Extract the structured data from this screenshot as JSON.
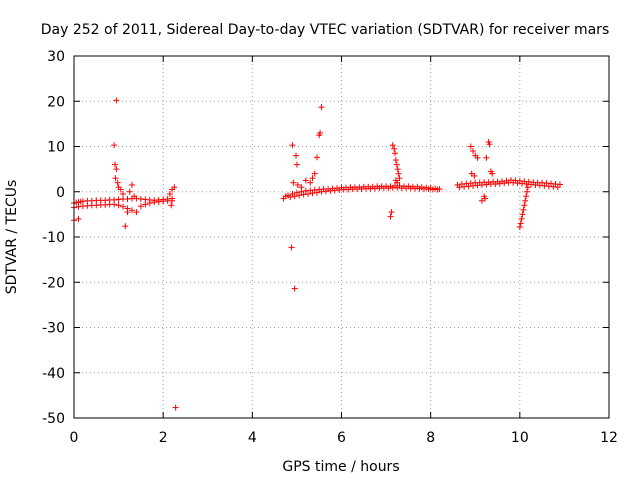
{
  "chart_data": {
    "type": "scatter",
    "title": "Day 252 of 2011, Sidereal Day-to-day VTEC variation (SDTVAR) for receiver mars",
    "xlabel": "GPS time / hours",
    "ylabel": "SDTVAR / TECUs",
    "xlim": [
      0,
      12
    ],
    "ylim": [
      -50,
      30
    ],
    "xticks": [
      "0",
      "2",
      "4",
      "6",
      "8",
      "10",
      "12"
    ],
    "yticks": [
      "30",
      "20",
      "10",
      "0",
      "-10",
      "-20",
      "-30",
      "-40",
      "-50"
    ],
    "grid": true,
    "marker": "+",
    "series": [
      {
        "name": "SDTVAR",
        "color": "#ff0000",
        "points": [
          [
            0.0,
            -2.5
          ],
          [
            0.05,
            -2.4
          ],
          [
            0.1,
            -2.3
          ],
          [
            0.15,
            -2.2
          ],
          [
            0.2,
            -2.1
          ],
          [
            0.3,
            -2.0
          ],
          [
            0.4,
            -2.0
          ],
          [
            0.5,
            -1.9
          ],
          [
            0.6,
            -1.9
          ],
          [
            0.7,
            -1.9
          ],
          [
            0.8,
            -1.8
          ],
          [
            0.9,
            -1.8
          ],
          [
            1.0,
            -1.7
          ],
          [
            1.1,
            -1.6
          ],
          [
            1.2,
            -1.6
          ],
          [
            1.3,
            -1.5
          ],
          [
            1.4,
            -1.5
          ],
          [
            1.5,
            -1.6
          ],
          [
            1.6,
            -1.7
          ],
          [
            1.7,
            -1.8
          ],
          [
            1.8,
            -1.9
          ],
          [
            1.9,
            -1.8
          ],
          [
            2.0,
            -1.7
          ],
          [
            2.1,
            -1.6
          ],
          [
            2.2,
            -1.5
          ],
          [
            0.0,
            -3.5
          ],
          [
            0.1,
            -3.3
          ],
          [
            0.2,
            -3.2
          ],
          [
            0.3,
            -3.1
          ],
          [
            0.4,
            -3.0
          ],
          [
            0.5,
            -3.0
          ],
          [
            0.6,
            -2.9
          ],
          [
            0.7,
            -2.9
          ],
          [
            0.8,
            -2.8
          ],
          [
            0.9,
            -2.8
          ],
          [
            1.0,
            -3.0
          ],
          [
            1.1,
            -3.3
          ],
          [
            1.2,
            -3.7
          ],
          [
            1.3,
            -4.1
          ],
          [
            1.4,
            -4.5
          ],
          [
            1.5,
            -3.2
          ],
          [
            1.6,
            -2.8
          ],
          [
            1.7,
            -2.5
          ],
          [
            1.8,
            -2.3
          ],
          [
            1.9,
            -2.2
          ],
          [
            2.0,
            -2.1
          ],
          [
            2.1,
            -2.0
          ],
          [
            2.2,
            -2.0
          ],
          [
            0.0,
            -6.3
          ],
          [
            0.1,
            -6.0
          ],
          [
            0.95,
            20.2
          ],
          [
            0.9,
            10.3
          ],
          [
            0.92,
            6.0
          ],
          [
            0.95,
            5.0
          ],
          [
            0.93,
            3.0
          ],
          [
            0.98,
            2.0
          ],
          [
            1.0,
            1.0
          ],
          [
            1.05,
            0.5
          ],
          [
            1.1,
            -0.5
          ],
          [
            1.15,
            -7.6
          ],
          [
            1.2,
            -4.5
          ],
          [
            1.3,
            1.5
          ],
          [
            1.25,
            0.0
          ],
          [
            1.35,
            -1.0
          ],
          [
            2.15,
            -0.5
          ],
          [
            2.2,
            0.5
          ],
          [
            2.25,
            1.0
          ],
          [
            2.18,
            -3.0
          ],
          [
            2.28,
            -47.7
          ],
          [
            4.7,
            -1.5
          ],
          [
            4.8,
            -0.8
          ],
          [
            4.9,
            -0.5
          ],
          [
            5.0,
            -0.2
          ],
          [
            5.1,
            0.0
          ],
          [
            5.2,
            0.2
          ],
          [
            5.3,
            0.3
          ],
          [
            5.4,
            0.4
          ],
          [
            5.5,
            0.5
          ],
          [
            5.6,
            0.6
          ],
          [
            5.7,
            0.6
          ],
          [
            5.8,
            0.7
          ],
          [
            5.9,
            0.8
          ],
          [
            6.0,
            0.9
          ],
          [
            6.1,
            0.9
          ],
          [
            6.2,
            1.0
          ],
          [
            6.3,
            1.0
          ],
          [
            6.4,
            1.0
          ],
          [
            6.5,
            1.1
          ],
          [
            6.6,
            1.1
          ],
          [
            6.7,
            1.1
          ],
          [
            6.8,
            1.2
          ],
          [
            6.9,
            1.2
          ],
          [
            7.0,
            1.2
          ],
          [
            7.1,
            1.2
          ],
          [
            7.2,
            1.3
          ],
          [
            7.3,
            1.3
          ],
          [
            7.4,
            1.2
          ],
          [
            7.5,
            1.2
          ],
          [
            7.6,
            1.1
          ],
          [
            7.7,
            1.1
          ],
          [
            7.8,
            1.0
          ],
          [
            7.9,
            0.9
          ],
          [
            8.0,
            0.8
          ],
          [
            8.1,
            0.7
          ],
          [
            8.2,
            0.6
          ],
          [
            4.75,
            -1.0
          ],
          [
            4.85,
            -1.2
          ],
          [
            4.95,
            -1.0
          ],
          [
            5.05,
            -0.8
          ],
          [
            5.15,
            -0.6
          ],
          [
            5.25,
            -0.5
          ],
          [
            5.35,
            -0.3
          ],
          [
            5.45,
            -0.2
          ],
          [
            5.55,
            0.0
          ],
          [
            5.65,
            0.1
          ],
          [
            5.75,
            0.2
          ],
          [
            5.85,
            0.3
          ],
          [
            5.95,
            0.4
          ],
          [
            6.05,
            0.5
          ],
          [
            6.15,
            0.5
          ],
          [
            6.25,
            0.6
          ],
          [
            6.35,
            0.6
          ],
          [
            6.45,
            0.6
          ],
          [
            6.55,
            0.7
          ],
          [
            6.65,
            0.7
          ],
          [
            6.75,
            0.7
          ],
          [
            6.85,
            0.8
          ],
          [
            6.95,
            0.8
          ],
          [
            7.05,
            0.8
          ],
          [
            7.15,
            0.9
          ],
          [
            7.25,
            0.9
          ],
          [
            7.35,
            0.8
          ],
          [
            7.45,
            0.8
          ],
          [
            7.55,
            0.8
          ],
          [
            7.65,
            0.7
          ],
          [
            7.75,
            0.7
          ],
          [
            7.85,
            0.6
          ],
          [
            7.95,
            0.6
          ],
          [
            8.05,
            0.5
          ],
          [
            8.15,
            0.5
          ],
          [
            4.88,
            -12.3
          ],
          [
            4.9,
            10.3
          ],
          [
            4.95,
            -21.4
          ],
          [
            4.98,
            8.0
          ],
          [
            5.0,
            6.0
          ],
          [
            4.92,
            2.0
          ],
          [
            5.02,
            1.5
          ],
          [
            5.1,
            1.0
          ],
          [
            5.2,
            2.5
          ],
          [
            5.3,
            2.0
          ],
          [
            5.35,
            3.0
          ],
          [
            5.4,
            4.0
          ],
          [
            5.45,
            7.6
          ],
          [
            5.5,
            12.5
          ],
          [
            5.52,
            13.0
          ],
          [
            5.55,
            18.7
          ],
          [
            7.1,
            -5.5
          ],
          [
            7.12,
            -4.5
          ],
          [
            7.15,
            10.3
          ],
          [
            7.18,
            9.5
          ],
          [
            7.2,
            8.5
          ],
          [
            7.22,
            7.0
          ],
          [
            7.24,
            6.0
          ],
          [
            7.26,
            5.0
          ],
          [
            7.28,
            4.0
          ],
          [
            7.3,
            3.0
          ],
          [
            7.22,
            2.5
          ],
          [
            7.25,
            2.0
          ],
          [
            8.6,
            1.5
          ],
          [
            8.7,
            1.7
          ],
          [
            8.8,
            1.8
          ],
          [
            8.9,
            1.9
          ],
          [
            9.0,
            2.0
          ],
          [
            9.1,
            2.0
          ],
          [
            9.2,
            2.1
          ],
          [
            9.3,
            2.1
          ],
          [
            9.4,
            2.2
          ],
          [
            9.5,
            2.2
          ],
          [
            9.6,
            2.3
          ],
          [
            9.7,
            2.4
          ],
          [
            9.8,
            2.6
          ],
          [
            9.9,
            2.5
          ],
          [
            10.0,
            2.4
          ],
          [
            10.1,
            2.3
          ],
          [
            10.2,
            2.2
          ],
          [
            10.3,
            2.1
          ],
          [
            10.4,
            2.0
          ],
          [
            10.5,
            2.0
          ],
          [
            10.6,
            1.9
          ],
          [
            10.7,
            1.8
          ],
          [
            10.8,
            1.7
          ],
          [
            10.9,
            1.6
          ],
          [
            8.65,
            1.0
          ],
          [
            8.75,
            1.1
          ],
          [
            8.85,
            1.2
          ],
          [
            8.95,
            1.3
          ],
          [
            9.05,
            1.4
          ],
          [
            9.15,
            1.5
          ],
          [
            9.25,
            1.6
          ],
          [
            9.35,
            1.7
          ],
          [
            9.45,
            1.7
          ],
          [
            9.55,
            1.8
          ],
          [
            9.65,
            1.9
          ],
          [
            9.75,
            2.0
          ],
          [
            9.85,
            2.0
          ],
          [
            9.95,
            1.9
          ],
          [
            10.05,
            1.8
          ],
          [
            10.15,
            1.7
          ],
          [
            10.25,
            1.6
          ],
          [
            10.35,
            1.5
          ],
          [
            10.45,
            1.4
          ],
          [
            10.55,
            1.3
          ],
          [
            10.65,
            1.2
          ],
          [
            10.75,
            1.1
          ],
          [
            10.85,
            1.0
          ],
          [
            8.9,
            10.0
          ],
          [
            8.95,
            9.0
          ],
          [
            9.0,
            8.0
          ],
          [
            9.05,
            7.5
          ],
          [
            8.92,
            4.0
          ],
          [
            8.98,
            3.5
          ],
          [
            9.3,
            11.0
          ],
          [
            9.32,
            10.5
          ],
          [
            9.35,
            4.5
          ],
          [
            9.38,
            4.0
          ],
          [
            9.25,
            7.5
          ],
          [
            9.2,
            -1.0
          ],
          [
            9.22,
            -1.5
          ],
          [
            9.15,
            -2.0
          ],
          [
            10.0,
            -7.8
          ],
          [
            10.02,
            -7.0
          ],
          [
            10.04,
            -6.0
          ],
          [
            10.06,
            -5.0
          ],
          [
            10.08,
            -4.0
          ],
          [
            10.1,
            -3.0
          ],
          [
            10.12,
            -2.0
          ],
          [
            10.14,
            -1.0
          ],
          [
            10.16,
            0.0
          ],
          [
            10.18,
            1.0
          ]
        ]
      }
    ]
  }
}
